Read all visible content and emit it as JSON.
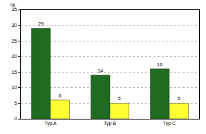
{
  "chart_data": {
    "type": "bar",
    "ylabel": "%",
    "categories": [
      "Typ A",
      "Typ B",
      "Typ C"
    ],
    "series": [
      {
        "color": "#1f6b1f",
        "values": [
          29,
          14,
          16
        ]
      },
      {
        "color": "#ffff33",
        "values": [
          6,
          5,
          5
        ]
      }
    ],
    "ylim": [
      0,
      35
    ],
    "yticks": [
      0,
      5,
      10,
      15,
      20,
      25,
      30,
      35
    ],
    "grid": true,
    "data_labels": true
  }
}
